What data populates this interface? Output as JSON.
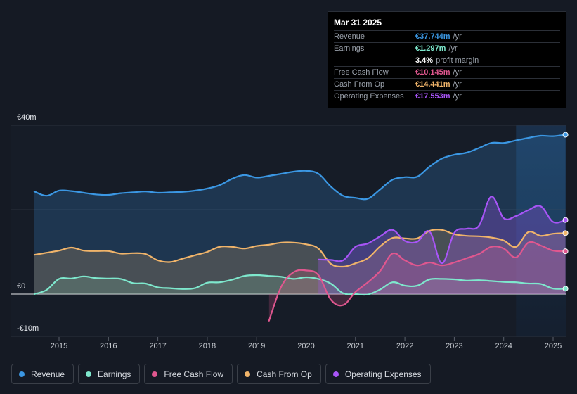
{
  "tooltip": {
    "date": "Mar 31 2025",
    "rows": [
      {
        "label": "Revenue",
        "value": "€37.744m",
        "unit": "/yr",
        "color": "#3b97e3"
      },
      {
        "label": "Earnings",
        "value": "€1.297m",
        "unit": "/yr",
        "color": "#7ee8cd"
      },
      {
        "label": "",
        "value": "3.4%",
        "unit": "profit margin",
        "color": "#ffffff"
      },
      {
        "label": "Free Cash Flow",
        "value": "€10.145m",
        "unit": "/yr",
        "color": "#e0578f"
      },
      {
        "label": "Cash From Op",
        "value": "€14.441m",
        "unit": "/yr",
        "color": "#f0b46a"
      },
      {
        "label": "Operating Expenses",
        "value": "€17.553m",
        "unit": "/yr",
        "color": "#a855f7"
      }
    ]
  },
  "legend": [
    {
      "label": "Revenue",
      "color": "#3b97e3"
    },
    {
      "label": "Earnings",
      "color": "#7ee8cd"
    },
    {
      "label": "Free Cash Flow",
      "color": "#e0578f"
    },
    {
      "label": "Cash From Op",
      "color": "#f0b46a"
    },
    {
      "label": "Operating Expenses",
      "color": "#a855f7"
    }
  ],
  "chart_data": {
    "type": "area",
    "title": "",
    "y_tick_labels": [
      "€40m",
      "€0",
      "-€10m"
    ],
    "ylim": [
      -10,
      40
    ],
    "x_ticks": [
      2015,
      2016,
      2017,
      2018,
      2019,
      2020,
      2021,
      2022,
      2023,
      2024,
      2025
    ],
    "x_tick_labels": [
      "2015",
      "2016",
      "2017",
      "2018",
      "2019",
      "2020",
      "2021",
      "2022",
      "2023",
      "2024",
      "2025"
    ],
    "xlim": [
      2014.5,
      2025.25
    ],
    "forecast_start": 2024.25,
    "series": [
      {
        "name": "Revenue",
        "color": "#3b97e3",
        "x": [
          2014.5,
          2014.75,
          2015.0,
          2015.25,
          2015.5,
          2015.75,
          2016.0,
          2016.25,
          2016.5,
          2016.75,
          2017.0,
          2017.25,
          2017.5,
          2017.75,
          2018.0,
          2018.25,
          2018.5,
          2018.75,
          2019.0,
          2019.25,
          2019.5,
          2019.75,
          2020.0,
          2020.25,
          2020.5,
          2020.75,
          2021.0,
          2021.25,
          2021.5,
          2021.75,
          2022.0,
          2022.25,
          2022.5,
          2022.75,
          2023.0,
          2023.25,
          2023.5,
          2023.75,
          2024.0,
          2024.25,
          2024.5,
          2024.75,
          2025.0,
          2025.25
        ],
        "values": [
          24.3,
          23.3,
          24.5,
          24.4,
          24.0,
          23.6,
          23.5,
          23.9,
          24.1,
          24.3,
          24.0,
          24.1,
          24.2,
          24.5,
          25.0,
          25.8,
          27.3,
          28.2,
          27.6,
          28.0,
          28.5,
          29.0,
          29.2,
          28.5,
          25.5,
          23.3,
          22.8,
          22.6,
          24.8,
          27.1,
          27.7,
          27.8,
          30.2,
          32.1,
          33.0,
          33.5,
          34.6,
          35.8,
          35.8,
          36.4,
          37.0,
          37.5,
          37.4,
          37.744
        ]
      },
      {
        "name": "Earnings",
        "color": "#7ee8cd",
        "x": [
          2014.5,
          2014.75,
          2015.0,
          2015.25,
          2015.5,
          2015.75,
          2016.0,
          2016.25,
          2016.5,
          2016.75,
          2017.0,
          2017.25,
          2017.5,
          2017.75,
          2018.0,
          2018.25,
          2018.5,
          2018.75,
          2019.0,
          2019.25,
          2019.5,
          2019.75,
          2020.0,
          2020.25,
          2020.5,
          2020.75,
          2021.0,
          2021.25,
          2021.5,
          2021.75,
          2022.0,
          2022.25,
          2022.5,
          2022.75,
          2023.0,
          2023.25,
          2023.5,
          2023.75,
          2024.0,
          2024.25,
          2024.5,
          2024.75,
          2025.0,
          2025.25
        ],
        "values": [
          0.0,
          1.0,
          3.6,
          3.7,
          4.2,
          3.8,
          3.7,
          3.6,
          2.6,
          2.5,
          1.6,
          1.4,
          1.2,
          1.4,
          2.7,
          2.8,
          3.4,
          4.3,
          4.5,
          4.3,
          4.1,
          3.6,
          4.0,
          3.6,
          2.5,
          0.2,
          0.0,
          -0.1,
          1.1,
          2.8,
          2.0,
          2.0,
          3.5,
          3.6,
          3.5,
          3.2,
          3.3,
          3.1,
          2.9,
          2.8,
          2.5,
          2.4,
          1.3,
          1.297
        ]
      },
      {
        "name": "Free Cash Flow",
        "color": "#e0578f",
        "x": [
          2019.25,
          2019.5,
          2019.75,
          2020.0,
          2020.25,
          2020.5,
          2020.75,
          2021.0,
          2021.25,
          2021.5,
          2021.75,
          2022.0,
          2022.25,
          2022.5,
          2022.75,
          2023.0,
          2023.25,
          2023.5,
          2023.75,
          2024.0,
          2024.25,
          2024.5,
          2024.75,
          2025.0,
          2025.25
        ],
        "values": [
          -6.3,
          1.8,
          5.2,
          5.6,
          4.5,
          -1.3,
          -2.6,
          0.5,
          2.8,
          5.5,
          9.6,
          8.0,
          6.8,
          7.5,
          6.8,
          7.5,
          8.5,
          9.5,
          11.2,
          10.8,
          8.7,
          12.2,
          11.5,
          10.3,
          10.145
        ]
      },
      {
        "name": "Cash From Op",
        "color": "#f0b46a",
        "x": [
          2014.5,
          2014.75,
          2015.0,
          2015.25,
          2015.5,
          2015.75,
          2016.0,
          2016.25,
          2016.5,
          2016.75,
          2017.0,
          2017.25,
          2017.5,
          2017.75,
          2018.0,
          2018.25,
          2018.5,
          2018.75,
          2019.0,
          2019.25,
          2019.5,
          2019.75,
          2020.0,
          2020.25,
          2020.5,
          2020.75,
          2021.0,
          2021.25,
          2021.5,
          2021.75,
          2022.0,
          2022.25,
          2022.5,
          2022.75,
          2023.0,
          2023.25,
          2023.5,
          2023.75,
          2024.0,
          2024.25,
          2024.5,
          2024.75,
          2025.0,
          2025.25
        ],
        "values": [
          9.3,
          9.8,
          10.3,
          11.0,
          10.3,
          10.2,
          10.2,
          9.6,
          9.7,
          9.5,
          8.0,
          7.6,
          8.4,
          9.2,
          10.0,
          11.2,
          11.2,
          10.8,
          11.4,
          11.7,
          12.2,
          12.2,
          11.8,
          10.8,
          7.2,
          6.5,
          7.3,
          8.5,
          11.3,
          13.3,
          13.2,
          13.2,
          15.0,
          15.2,
          14.2,
          13.8,
          13.7,
          13.4,
          12.7,
          11.2,
          14.7,
          13.8,
          14.3,
          14.441
        ]
      },
      {
        "name": "Operating Expenses",
        "color": "#a855f7",
        "x": [
          2020.25,
          2020.5,
          2020.75,
          2021.0,
          2021.25,
          2021.5,
          2021.75,
          2022.0,
          2022.25,
          2022.5,
          2022.75,
          2023.0,
          2023.25,
          2023.5,
          2023.75,
          2024.0,
          2024.25,
          2024.5,
          2024.75,
          2025.0,
          2025.25
        ],
        "values": [
          8.2,
          8.1,
          8.0,
          11.2,
          12.0,
          13.7,
          15.2,
          12.6,
          12.4,
          14.8,
          7.3,
          14.5,
          15.5,
          16.2,
          23.1,
          18.0,
          18.5,
          19.9,
          20.8,
          17.1,
          17.553
        ]
      }
    ]
  }
}
